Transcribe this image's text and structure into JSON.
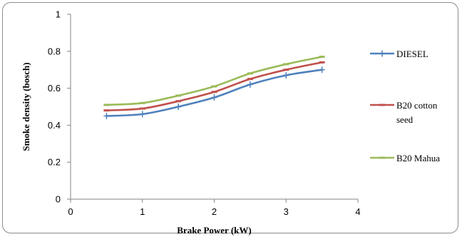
{
  "chart_data": {
    "type": "line",
    "title": "",
    "xlabel": "Brake Power (kW)",
    "ylabel": "Smoke density (bosch)",
    "xlim": [
      0,
      4
    ],
    "ylim": [
      0,
      1
    ],
    "x_ticks": [
      "0",
      "1",
      "2",
      "3",
      "4"
    ],
    "y_ticks": [
      "0",
      "0.2",
      "0.4",
      "0.6",
      "0.8",
      "1"
    ],
    "grid": false,
    "legend_position": "right",
    "series": [
      {
        "name": "DIESEL",
        "color": "#4f81bd",
        "marker": "plus",
        "x": [
          0.5,
          1,
          1.5,
          2,
          2.5,
          3,
          3.5
        ],
        "y": [
          0.45,
          0.46,
          0.5,
          0.55,
          0.62,
          0.67,
          0.7
        ]
      },
      {
        "name": "B20 cotton seed",
        "color": "#c0504d",
        "marker": "dash",
        "x": [
          0.5,
          1,
          1.5,
          2,
          2.5,
          3,
          3.5
        ],
        "y": [
          0.48,
          0.49,
          0.53,
          0.58,
          0.65,
          0.7,
          0.74
        ]
      },
      {
        "name": "B20 Mahua",
        "color": "#9bbb59",
        "marker": "dash",
        "x": [
          0.5,
          1,
          1.5,
          2,
          2.5,
          3,
          3.5
        ],
        "y": [
          0.51,
          0.52,
          0.56,
          0.61,
          0.68,
          0.73,
          0.77
        ]
      }
    ]
  }
}
